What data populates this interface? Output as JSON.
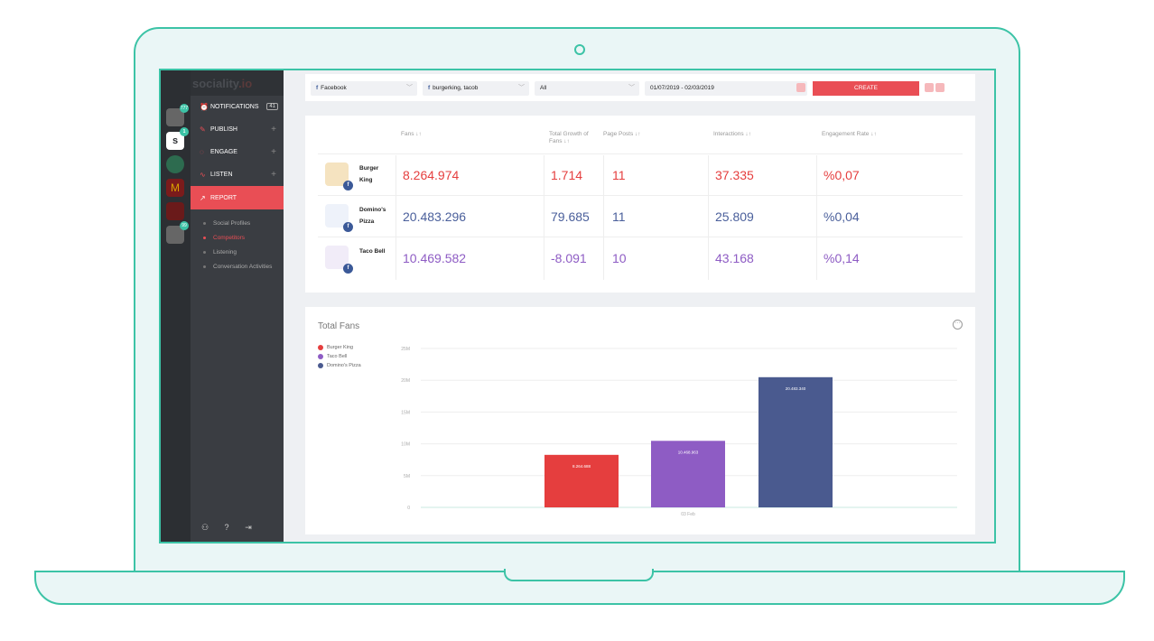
{
  "sidebar": {
    "logo_main": "sociality",
    "logo_suffix": ".io",
    "rail_badges": [
      "777",
      "1",
      "99"
    ],
    "menu": [
      {
        "label": "NOTIFICATIONS",
        "count": "41"
      },
      {
        "label": "PUBLISH",
        "action": "+"
      },
      {
        "label": "ENGAGE",
        "action": "+"
      },
      {
        "label": "LISTEN",
        "action": "+"
      },
      {
        "label": "REPORT"
      }
    ],
    "report_sub": [
      "Social Profiles",
      "Competitors",
      "Listening",
      "Conversation Activities"
    ],
    "bottom_icons": [
      "user-icon",
      "help-icon",
      "logout-icon"
    ],
    "bottom_glyphs": [
      "⚇",
      "?",
      "⇥"
    ]
  },
  "filters": {
    "network": "Facebook",
    "accounts": "burgerking,  tacob",
    "type": "All",
    "date_range": "01/07/2019 - 02/03/2019",
    "create_label": "CREATE"
  },
  "table": {
    "headers": [
      "Fans ↓↑",
      "Total Growth of Fans ↓↑",
      "Page Posts ↓↑",
      "Interactions ↓↑",
      "Engagement Rate ↓↑"
    ],
    "rows": [
      {
        "brand": "Burger King",
        "fans": "8.264.974",
        "growth": "1.714",
        "posts": "11",
        "interactions": "37.335",
        "engagement": "%0,07",
        "color": "#e53e3e"
      },
      {
        "brand": "Domino's Pizza",
        "fans": "20.483.296",
        "growth": "79.685",
        "posts": "11",
        "interactions": "25.809",
        "engagement": "%0,04",
        "color": "#4a5f9b"
      },
      {
        "brand": "Taco Bell",
        "fans": "10.469.582",
        "growth": "-8.091",
        "posts": "10",
        "interactions": "43.168",
        "engagement": "%0,14",
        "color": "#8e5cc4"
      }
    ]
  },
  "chart_data": {
    "type": "bar",
    "title": "Total Fans",
    "categories": [
      "03 Feb"
    ],
    "series": [
      {
        "name": "Burger King",
        "values": [
          8264688
        ],
        "label": "8.264.688",
        "color": "#e53e3e"
      },
      {
        "name": "Taco Bell",
        "values": [
          10468963
        ],
        "label": "10.468.963",
        "color": "#8e5cc4"
      },
      {
        "name": "Domino's Pizza",
        "values": [
          20483340
        ],
        "label": "20.483.340",
        "color": "#4a5a8f"
      }
    ],
    "yticks": [
      "0",
      "5M",
      "10M",
      "15M",
      "20M",
      "25M"
    ],
    "ylim": [
      0,
      25000000
    ],
    "legend": "top-left",
    "grid": true
  }
}
